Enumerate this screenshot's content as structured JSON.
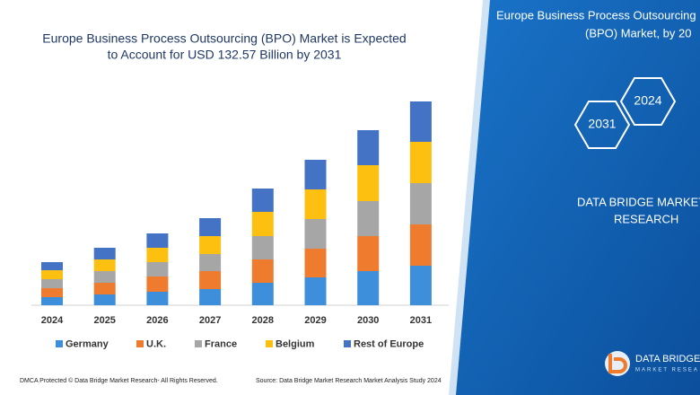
{
  "chart_data": {
    "type": "bar",
    "stacked": true,
    "title": [
      "Europe Business Process Outsourcing (BPO) Market is Expected",
      "to Account for USD 132.57 Billion by 2031"
    ],
    "categories": [
      "2024",
      "2025",
      "2026",
      "2027",
      "2028",
      "2029",
      "2030",
      "2031"
    ],
    "series": [
      {
        "name": "Germany",
        "color": "#3d8fdb",
        "values": [
          9,
          12,
          15,
          18,
          25,
          31,
          38,
          44
        ]
      },
      {
        "name": "U.K.",
        "color": "#ef7b2f",
        "values": [
          10,
          13,
          17,
          20,
          26,
          32,
          39,
          46
        ]
      },
      {
        "name": "France",
        "color": "#a6a6a6",
        "values": [
          10,
          13,
          16,
          19,
          26,
          33,
          39,
          46
        ]
      },
      {
        "name": "Belgium",
        "color": "#fdc010",
        "values": [
          10,
          13,
          16,
          20,
          27,
          33,
          40,
          46
        ]
      },
      {
        "name": "Rest of Europe",
        "color": "#4472c4",
        "values": [
          9,
          13,
          16,
          20,
          26,
          33,
          39,
          45
        ]
      }
    ],
    "legend": "bottom"
  },
  "side_panel": {
    "title": [
      "Europe Business Process Outsourcing",
      "(BPO) Market, by 20"
    ],
    "hexagons": [
      "2024",
      "2031"
    ],
    "brand": [
      "DATA BRIDGE MARKET",
      "RESEARCH"
    ]
  },
  "footer": {
    "left": "DMCA Protected © Data Bridge Market Research- All Rights Reserved.",
    "right": "Source: Data Bridge Market Research Market Analysis Study 2024"
  },
  "logo": {
    "text": "DATA BRIDGE",
    "subtext": "MARKET RESEA"
  }
}
